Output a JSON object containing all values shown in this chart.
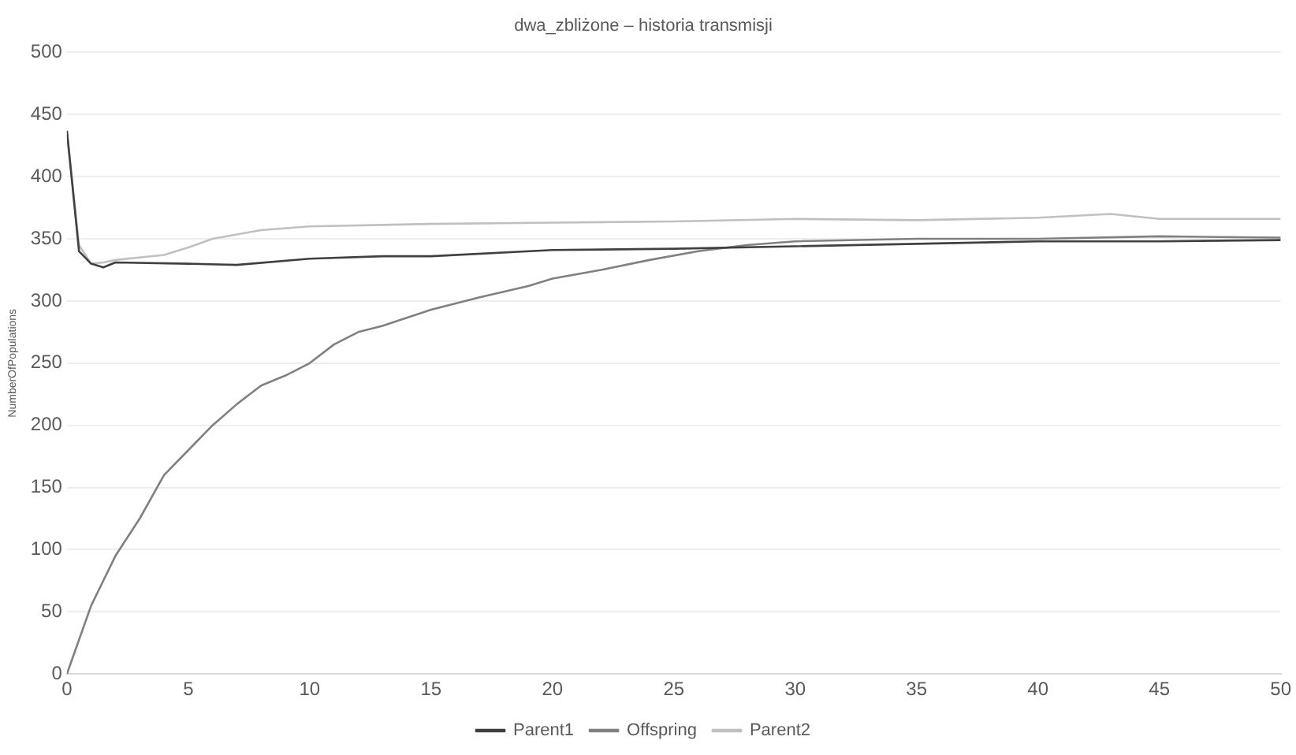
{
  "chart_data": {
    "type": "line",
    "title": "dwa_zbliżone – historia transmisji",
    "ylabel": "NumberOfPopulations",
    "xlim": [
      0,
      50
    ],
    "xticks": [
      0,
      5,
      10,
      15,
      20,
      25,
      30,
      35,
      40,
      45,
      50
    ],
    "ylim": [
      0,
      500
    ],
    "yticks": [
      0,
      50,
      100,
      150,
      200,
      250,
      300,
      350,
      400,
      450,
      500
    ],
    "grid": "y",
    "legend": "bottom",
    "marker": "none",
    "line_style": "solid",
    "series": [
      {
        "name": "Parent1",
        "color": "#404040",
        "x": [
          0,
          0.5,
          1,
          1.5,
          2,
          5,
          7,
          10,
          13,
          15,
          20,
          25,
          30,
          35,
          40,
          45,
          50
        ],
        "values": [
          437,
          340,
          330,
          327,
          331,
          330,
          329,
          334,
          336,
          336,
          341,
          342,
          344,
          346,
          348,
          348,
          349
        ]
      },
      {
        "name": "Offspring",
        "color": "#808080",
        "x": [
          0,
          1,
          2,
          3,
          4,
          5,
          6,
          7,
          8,
          9,
          10,
          11,
          12,
          13,
          15,
          17,
          19,
          20,
          22,
          24,
          26,
          28,
          30,
          35,
          40,
          45,
          50
        ],
        "values": [
          0,
          55,
          95,
          125,
          160,
          180,
          200,
          217,
          232,
          240,
          250,
          265,
          275,
          280,
          293,
          303,
          312,
          318,
          325,
          333,
          340,
          345,
          348,
          350,
          350,
          352,
          351
        ]
      },
      {
        "name": "Parent2",
        "color": "#c0c0c0",
        "x": [
          0,
          0.5,
          1,
          1.5,
          2,
          4,
          5,
          6,
          8,
          10,
          15,
          20,
          25,
          30,
          35,
          40,
          43,
          45,
          50
        ],
        "values": [
          437,
          345,
          330,
          331,
          333,
          337,
          343,
          350,
          357,
          360,
          362,
          363,
          364,
          366,
          365,
          367,
          370,
          366,
          366
        ]
      }
    ]
  }
}
